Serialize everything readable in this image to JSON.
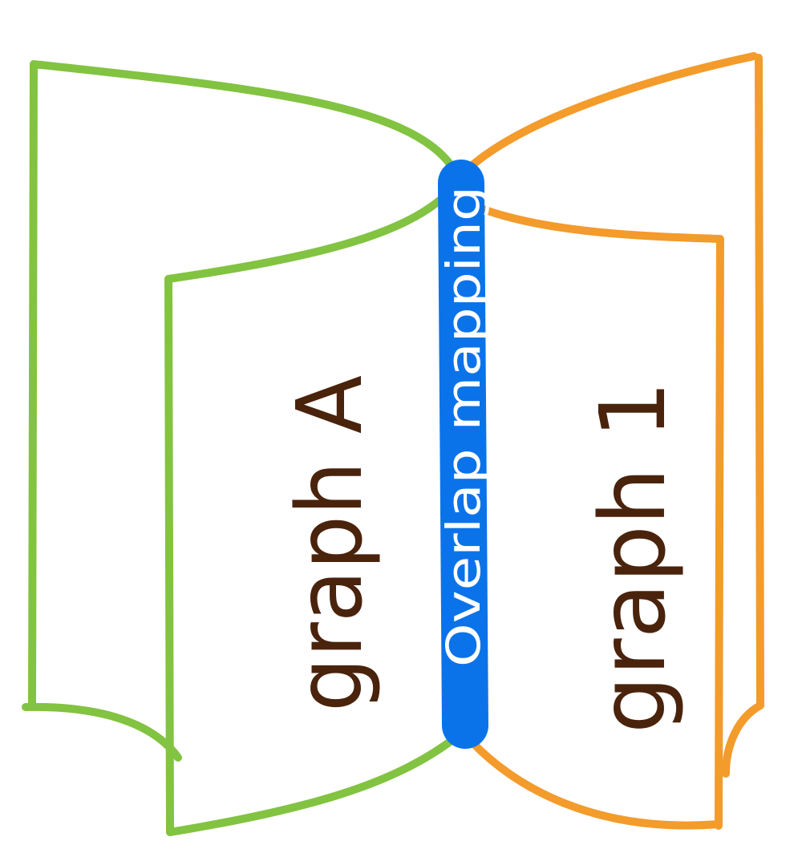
{
  "diagram": {
    "left_graph_label": "graph A",
    "right_graph_label": "graph 1",
    "spine_label": "Overlap mapping"
  },
  "colors": {
    "left_graph": "#82c341",
    "right_graph": "#f39b2b",
    "spine": "#0b73ea",
    "spine_text": "#ffffff",
    "label_text": "#4a230c",
    "background": "#ffffff"
  }
}
